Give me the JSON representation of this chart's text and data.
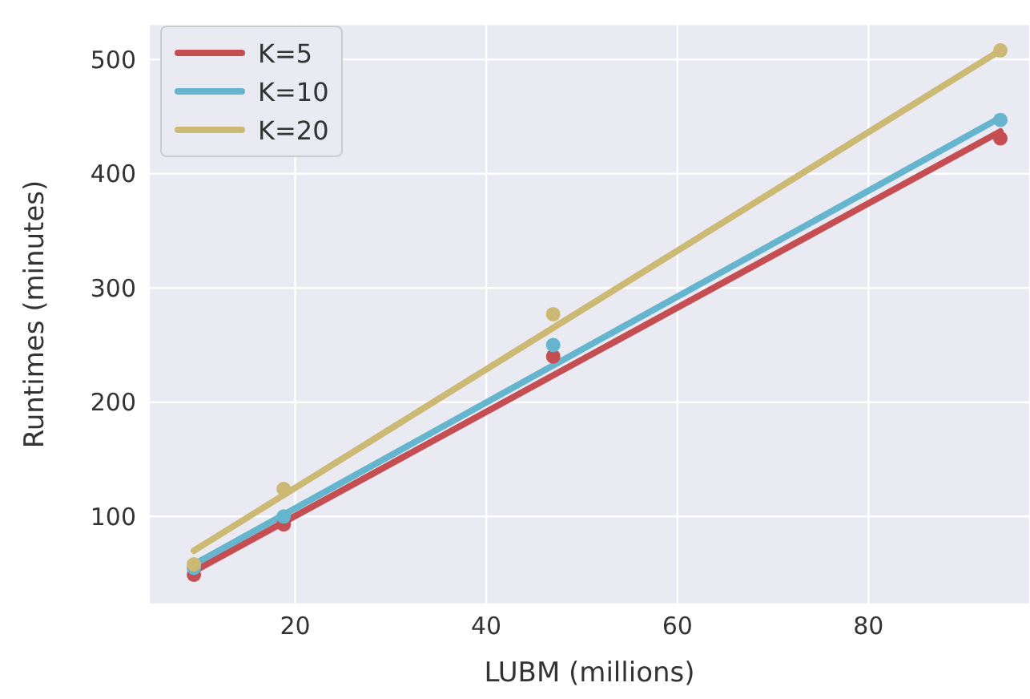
{
  "chart_data": {
    "type": "scatter",
    "xlabel": "LUBM (millions)",
    "ylabel": "Runtimes (minutes)",
    "xlim": [
      4.7,
      96.9
    ],
    "ylim": [
      23,
      531
    ],
    "xticks": [
      20,
      40,
      60,
      80
    ],
    "yticks": [
      100,
      200,
      300,
      400,
      500
    ],
    "grid": true,
    "legend": "top left",
    "marker": "circle",
    "series": [
      {
        "color": "#c44e52",
        "x": [
          9.4,
          18.8,
          47,
          93.8
        ],
        "values": [
          49,
          93,
          240,
          431
        ]
      },
      {
        "color": "#64b5cd",
        "x": [
          9.4,
          18.8,
          47,
          93.8
        ],
        "values": [
          55,
          100,
          250,
          447
        ]
      },
      {
        "color": "#ccb974",
        "x": [
          9.4,
          18.8,
          47,
          93.8
        ],
        "values": [
          58,
          124,
          277,
          508
        ]
      },
      {
        "type": "line",
        "name": "K=5",
        "color": "#c44e52",
        "marker": "none",
        "x": [
          9.4,
          93.8
        ],
        "values": [
          52,
          437
        ]
      },
      {
        "type": "line",
        "name": "K=10",
        "color": "#64b5cd",
        "marker": "none",
        "x": [
          9.4,
          93.8
        ],
        "values": [
          58,
          449
        ]
      },
      {
        "type": "line",
        "name": "K=20",
        "color": "#ccb974",
        "marker": "none",
        "x": [
          9.4,
          93.8
        ],
        "values": [
          70,
          508
        ]
      }
    ]
  }
}
